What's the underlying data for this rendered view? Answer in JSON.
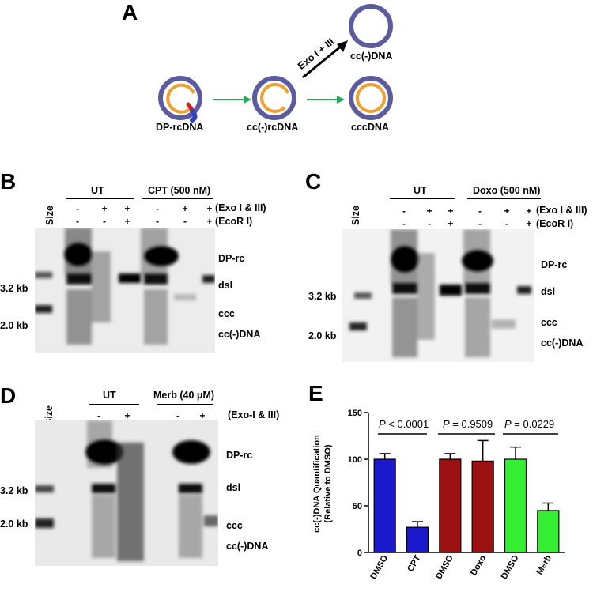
{
  "panelA": {
    "letter": "A",
    "dp_rcdna": "DP-rcDNA",
    "cc_rcdna": "cc(-)rcDNA",
    "cccdna": "cccDNA",
    "cc_dna": "cc(-)DNA",
    "exo": "Exo I + III",
    "colors": {
      "outer_ring": "#5b5b9e",
      "inner_ring": "#f0a030",
      "arrow_green": "#22aa55",
      "protein_red": "#cc2222",
      "protein_blue": "#3344bb"
    }
  },
  "panelB": {
    "letter": "B",
    "group_ut": "UT",
    "group_drug": "CPT (500 nM)",
    "exo_signs": [
      "-",
      "+",
      "+",
      "-",
      "+",
      "+"
    ],
    "exo_label": "(Exo I & III)",
    "ecor_signs": [
      "-",
      "-",
      "+",
      "-",
      "-",
      "+"
    ],
    "ecor_label": "(EcoR I)",
    "size": "Size",
    "marker_32": "3.2 kb",
    "marker_20": "2.0 kb",
    "band_dprc": "DP-rc",
    "band_dsl": "dsl",
    "band_ccc": "ccc",
    "band_ccdna": "cc(-)DNA"
  },
  "panelC": {
    "letter": "C",
    "group_ut": "UT",
    "group_drug": "Doxo (500 nM)",
    "exo_signs": [
      "-",
      "+",
      "+",
      "-",
      "+",
      "+"
    ],
    "exo_label": "(Exo I & III)",
    "ecor_signs": [
      "-",
      "-",
      "+",
      "-",
      "-",
      "+"
    ],
    "ecor_label": "(EcoR I)",
    "size": "Size",
    "marker_32": "3.2 kb",
    "marker_20": "2.0 kb",
    "band_dprc": "DP-rc",
    "band_dsl": "dsl",
    "band_ccc": "ccc",
    "band_ccdna": "cc(-)DNA"
  },
  "panelD": {
    "letter": "D",
    "group_ut": "UT",
    "group_drug": "Merb (40 μM)",
    "exo_signs": [
      "-",
      "+",
      "-",
      "+"
    ],
    "exo_label": "(Exo-I & III)",
    "size": "Size",
    "marker_32": "3.2 kb",
    "marker_20": "2.0 kb",
    "band_dprc": "DP-rc",
    "band_dsl": "dsl",
    "band_ccc": "ccc",
    "band_ccdna": "cc(-)DNA"
  },
  "panelE": {
    "letter": "E",
    "ylabel_line1": "cc(-)DNA Quantification",
    "ylabel_line2": "(Relative to DMSO)",
    "p1_prefix": "P",
    "p1_rest": " < 0.0001",
    "p2_prefix": "P",
    "p2_rest": " = 0.9509",
    "p3_prefix": "P",
    "p3_rest": " = 0.0229"
  },
  "chart_data": {
    "type": "bar",
    "title": "",
    "xlabel": "",
    "ylabel": "cc(-)DNA Quantification (Relative to DMSO)",
    "categories": [
      "DMSO",
      "CPT",
      "DMSO",
      "Doxo",
      "DMSO",
      "Merb"
    ],
    "values": [
      100,
      27,
      100,
      98,
      100,
      45
    ],
    "errors": [
      6,
      6,
      6,
      22,
      13,
      8
    ],
    "colors": [
      "#1a1acc",
      "#1a1acc",
      "#9b1010",
      "#9b1010",
      "#33ee33",
      "#33ee33"
    ],
    "ylim": [
      0,
      150
    ],
    "yticks": [
      0,
      50,
      100,
      150
    ],
    "ytick_labels": [
      "0",
      "50",
      "100",
      "150"
    ],
    "grid": false,
    "legend": "none"
  }
}
